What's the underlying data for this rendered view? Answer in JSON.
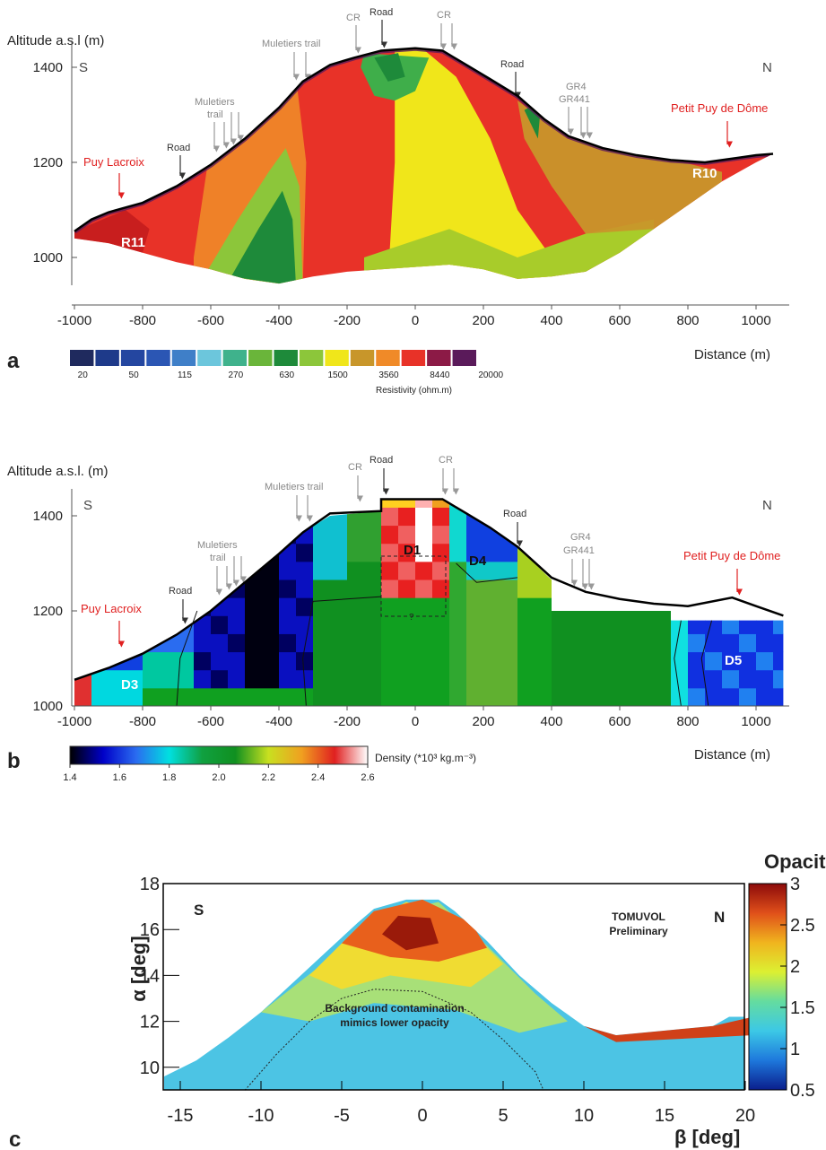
{
  "panels": [
    {
      "letter": "a",
      "y_title": "Altitude a.s.l (m)",
      "x_title": "Distance (m)",
      "xticks": [
        -1000,
        -800,
        -600,
        -400,
        -200,
        0,
        200,
        400,
        600,
        800,
        1000
      ],
      "yticks": [
        1000,
        1200,
        1400
      ],
      "labels": {
        "s": "S",
        "n": "N",
        "cr1": "CR",
        "road_top": "Road",
        "cr2": "CR",
        "muletiers_trail": "Muletiers trail",
        "muletiers": "Muletiers",
        "trail": "trail",
        "road_left": "Road",
        "road_right": "Road",
        "gr4": "GR4",
        "gr441": "GR441",
        "puy_lacroix": "Puy Lacroix",
        "petit_puy": "Petit Puy de Dôme",
        "r11": "R11",
        "r10": "R10"
      },
      "colorbar": {
        "title": "Resistivity (ohm.m)",
        "ticks": [
          20,
          50,
          115,
          270,
          630,
          1500,
          3560,
          8440,
          20000
        ],
        "colors": [
          "#1f2a5e",
          "#1e3a8a",
          "#2446a0",
          "#2b56b4",
          "#3f7fc8",
          "#6cc6dc",
          "#3fb28c",
          "#6ab53a",
          "#1e8a3a",
          "#8cc63a",
          "#f0e61a",
          "#c8962a",
          "#f08a28",
          "#e83228",
          "#8c1a46",
          "#5a1a5a"
        ]
      }
    },
    {
      "letter": "b",
      "y_title": "Altitude a.s.l. (m)",
      "x_title": "Distance (m)",
      "xticks": [
        -1000,
        -800,
        -600,
        -400,
        -200,
        0,
        200,
        400,
        600,
        800,
        1000
      ],
      "yticks": [
        1000,
        1200,
        1400
      ],
      "labels": {
        "s": "S",
        "n": "N",
        "cr1": "CR",
        "road_top": "Road",
        "cr2": "CR",
        "muletiers_trail": "Muletiers trail",
        "muletiers": "Muletiers",
        "trail": "trail",
        "road_left": "Road",
        "road_right": "Road",
        "gr4": "GR4",
        "gr441": "GR441",
        "puy_lacroix": "Puy Lacroix",
        "petit_puy": "Petit Puy de Dôme",
        "d1": "D1",
        "d3": "D3",
        "d4": "D4",
        "d5": "D5",
        "q": "?"
      },
      "colorbar": {
        "title": "Density (*10³ kg.m⁻³)",
        "ticks": [
          1.4,
          1.6,
          1.8,
          {
            "value": 2,
            "label": "2.0"
          },
          2.2,
          2.4,
          2.6
        ],
        "colors": [
          "#000000",
          "#0000c8",
          "#2a6cf0",
          "#00e0e0",
          "#10a040",
          "#109020",
          "#c8e020",
          "#f0a020",
          "#e02020",
          "#ffffff"
        ]
      }
    },
    {
      "letter": "c",
      "y_title": "α [deg]",
      "x_title": "β [deg]",
      "xticks": [
        -15,
        -10,
        -5,
        0,
        5,
        10,
        15,
        20
      ],
      "yticks": [
        10,
        12,
        14,
        16,
        18
      ],
      "labels": {
        "s": "S",
        "n": "N",
        "tomuvol": "TOMUVOL",
        "preliminary": "Preliminary",
        "bg1": "Background contamination",
        "bg2": "mimics lower opacity"
      },
      "colorbar": {
        "title": "Opacity",
        "ticks": [
          0.5,
          1,
          1.5,
          2,
          2.5,
          3
        ],
        "colors": [
          "#0a1e8c",
          "#1e78dc",
          "#3cc8e6",
          "#64dca0",
          "#dcf032",
          "#f0b41e",
          "#e0501a",
          "#8c0a0a"
        ]
      }
    }
  ]
}
